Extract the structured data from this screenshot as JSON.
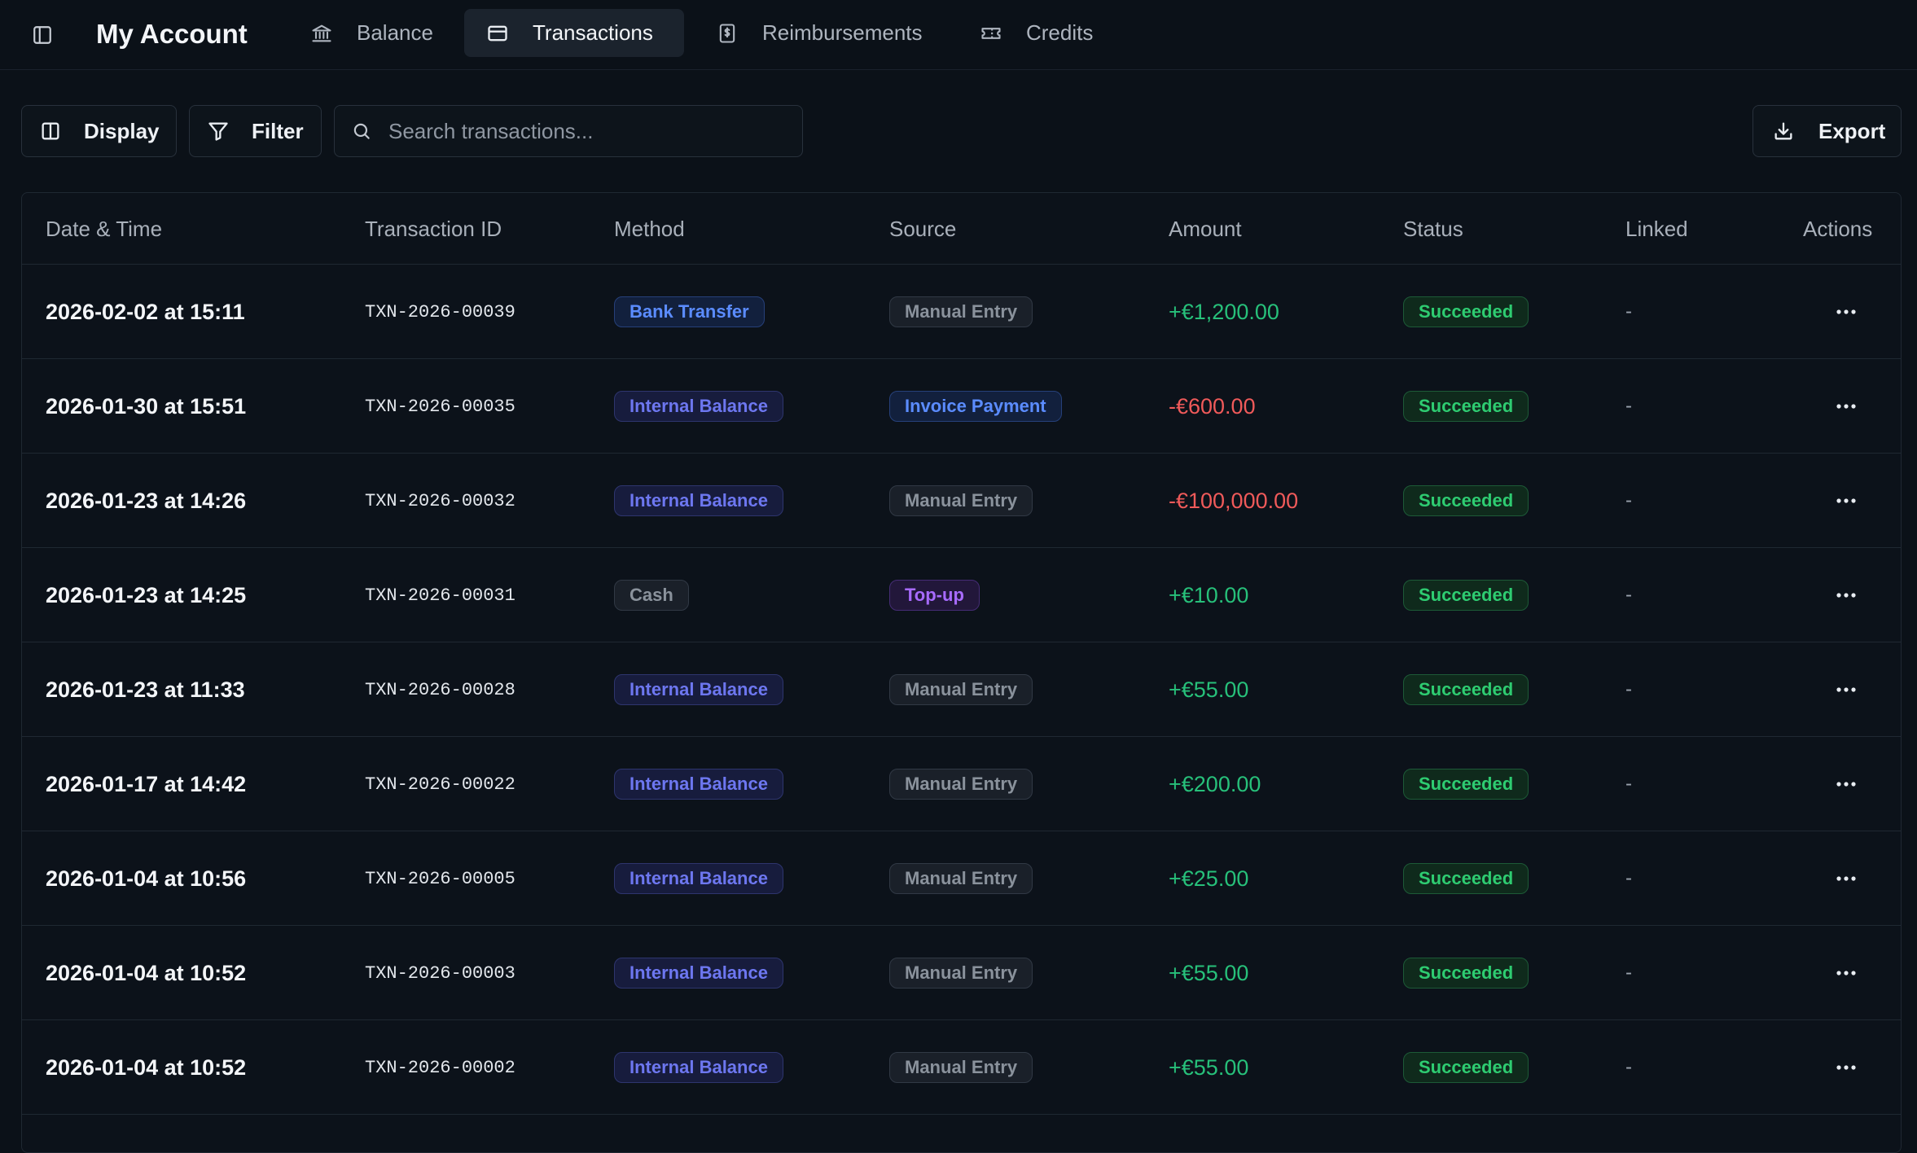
{
  "app": {
    "title": "My Account"
  },
  "tabs": [
    {
      "label": "Balance",
      "icon": "bank-icon",
      "active": false
    },
    {
      "label": "Transactions",
      "icon": "credit-card-icon",
      "active": true
    },
    {
      "label": "Reimbursements",
      "icon": "receipt-dollar-icon",
      "active": false
    },
    {
      "label": "Credits",
      "icon": "ticket-icon",
      "active": false
    }
  ],
  "toolbar": {
    "display_label": "Display",
    "filter_label": "Filter",
    "search_placeholder": "Search transactions...",
    "search_value": "",
    "export_label": "Export"
  },
  "table": {
    "headers": {
      "date": "Date & Time",
      "id": "Transaction ID",
      "method": "Method",
      "source": "Source",
      "amount": "Amount",
      "status": "Status",
      "linked": "Linked",
      "actions": "Actions"
    },
    "rows": [
      {
        "date": "2026-02-02 at 15:11",
        "id": "TXN-2026-00039",
        "method": "Bank Transfer",
        "method_color": "blue",
        "source": "Manual Entry",
        "source_color": "gray",
        "amount": "+€1,200.00",
        "amount_sign": "pos",
        "status": "Succeeded",
        "linked": "-"
      },
      {
        "date": "2026-01-30 at 15:51",
        "id": "TXN-2026-00035",
        "method": "Internal Balance",
        "method_color": "indigo",
        "source": "Invoice Payment",
        "source_color": "blue",
        "amount": "-€600.00",
        "amount_sign": "neg",
        "status": "Succeeded",
        "linked": "-"
      },
      {
        "date": "2026-01-23 at 14:26",
        "id": "TXN-2026-00032",
        "method": "Internal Balance",
        "method_color": "indigo",
        "source": "Manual Entry",
        "source_color": "gray",
        "amount": "-€100,000.00",
        "amount_sign": "neg",
        "status": "Succeeded",
        "linked": "-"
      },
      {
        "date": "2026-01-23 at 14:25",
        "id": "TXN-2026-00031",
        "method": "Cash",
        "method_color": "gray",
        "source": "Top-up",
        "source_color": "purple",
        "amount": "+€10.00",
        "amount_sign": "pos",
        "status": "Succeeded",
        "linked": "-"
      },
      {
        "date": "2026-01-23 at 11:33",
        "id": "TXN-2026-00028",
        "method": "Internal Balance",
        "method_color": "indigo",
        "source": "Manual Entry",
        "source_color": "gray",
        "amount": "+€55.00",
        "amount_sign": "pos",
        "status": "Succeeded",
        "linked": "-"
      },
      {
        "date": "2026-01-17 at 14:42",
        "id": "TXN-2026-00022",
        "method": "Internal Balance",
        "method_color": "indigo",
        "source": "Manual Entry",
        "source_color": "gray",
        "amount": "+€200.00",
        "amount_sign": "pos",
        "status": "Succeeded",
        "linked": "-"
      },
      {
        "date": "2026-01-04 at 10:56",
        "id": "TXN-2026-00005",
        "method": "Internal Balance",
        "method_color": "indigo",
        "source": "Manual Entry",
        "source_color": "gray",
        "amount": "+€25.00",
        "amount_sign": "pos",
        "status": "Succeeded",
        "linked": "-"
      },
      {
        "date": "2026-01-04 at 10:52",
        "id": "TXN-2026-00003",
        "method": "Internal Balance",
        "method_color": "indigo",
        "source": "Manual Entry",
        "source_color": "gray",
        "amount": "+€55.00",
        "amount_sign": "pos",
        "status": "Succeeded",
        "linked": "-"
      },
      {
        "date": "2026-01-04 at 10:52",
        "id": "TXN-2026-00002",
        "method": "Internal Balance",
        "method_color": "indigo",
        "source": "Manual Entry",
        "source_color": "gray",
        "amount": "+€55.00",
        "amount_sign": "pos",
        "status": "Succeeded",
        "linked": "-"
      }
    ]
  },
  "colors": {
    "background": "#0b1118",
    "positive": "#27c07a",
    "negative": "#f05a5a",
    "success": "#2ecc71",
    "accent_blue": "#5b8cff",
    "accent_indigo": "#6d77f0",
    "accent_purple": "#a86bff"
  }
}
